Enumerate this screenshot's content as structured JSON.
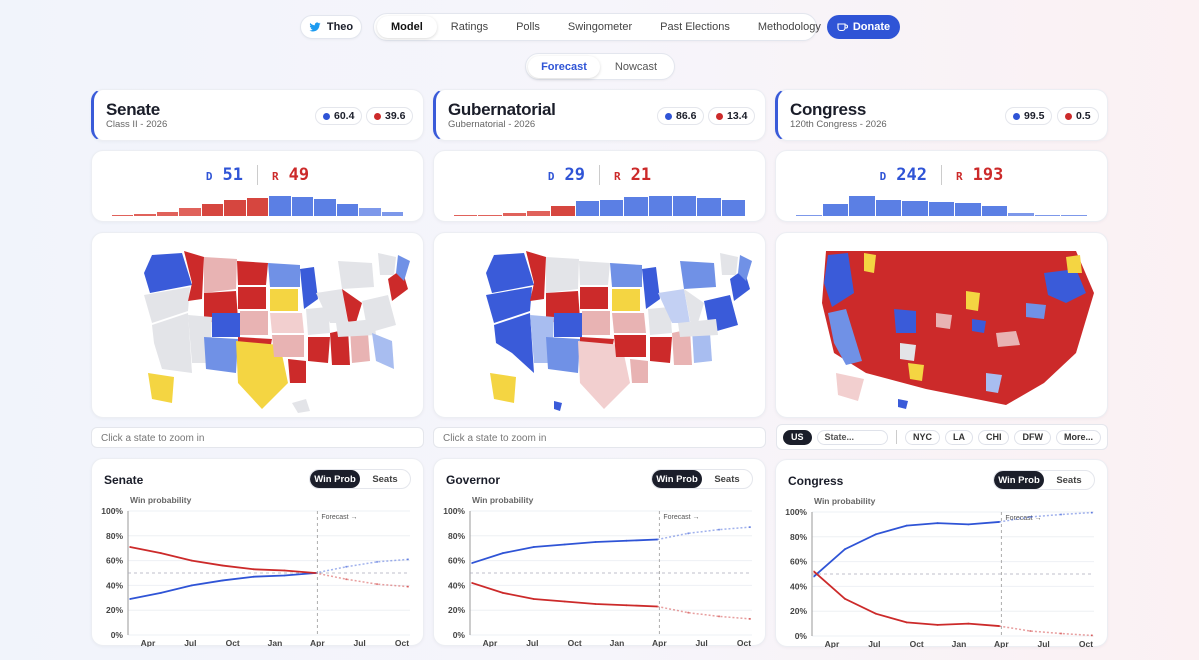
{
  "nav": {
    "theo_label": "Theo",
    "items": [
      "Model",
      "Ratings",
      "Polls",
      "Swingometer",
      "Past Elections",
      "Methodology"
    ],
    "active": "Model",
    "donate_label": "Donate"
  },
  "modes": {
    "items": [
      "Forecast",
      "Nowcast"
    ],
    "active": "Forecast"
  },
  "colors": {
    "dem": "#2f54d6",
    "rep": "#cc2a2a",
    "accent": "#2f54d6",
    "tossup": "#f4d542"
  },
  "races": [
    {
      "title": "Senate",
      "subtitle": "Class II - 2026",
      "dem_prob": "60.4",
      "rep_prob": "39.6",
      "seat_d_label": "D",
      "seat_d": "51",
      "seat_r_label": "R",
      "seat_r": "49",
      "histogram": [
        {
          "v": 0.02,
          "party": "R"
        },
        {
          "v": 0.06,
          "party": "R"
        },
        {
          "v": 0.14,
          "party": "R"
        },
        {
          "v": 0.3,
          "party": "R"
        },
        {
          "v": 0.48,
          "party": "R"
        },
        {
          "v": 0.62,
          "party": "R"
        },
        {
          "v": 0.7,
          "party": "R"
        },
        {
          "v": 0.78,
          "party": "D"
        },
        {
          "v": 0.74,
          "party": "D"
        },
        {
          "v": 0.64,
          "party": "D"
        },
        {
          "v": 0.48,
          "party": "D"
        },
        {
          "v": 0.3,
          "party": "D"
        },
        {
          "v": 0.16,
          "party": "D"
        }
      ],
      "zoom_hint": "Click a state to zoom in",
      "chart_title": "Senate",
      "toggle_on": "Win Prob",
      "toggle_off": "Seats"
    },
    {
      "title": "Gubernatorial",
      "subtitle": "Gubernatorial - 2026",
      "dem_prob": "86.6",
      "rep_prob": "13.4",
      "seat_d_label": "D",
      "seat_d": "29",
      "seat_r_label": "R",
      "seat_r": "21",
      "histogram": [
        {
          "v": 0.02,
          "party": "R"
        },
        {
          "v": 0.05,
          "party": "R"
        },
        {
          "v": 0.1,
          "party": "R"
        },
        {
          "v": 0.2,
          "party": "R"
        },
        {
          "v": 0.4,
          "party": "R"
        },
        {
          "v": 0.58,
          "party": "D"
        },
        {
          "v": 0.62,
          "party": "D"
        },
        {
          "v": 0.72,
          "party": "D"
        },
        {
          "v": 0.78,
          "party": "D"
        },
        {
          "v": 0.76,
          "party": "D"
        },
        {
          "v": 0.7,
          "party": "D"
        },
        {
          "v": 0.62,
          "party": "D"
        }
      ],
      "zoom_hint": "Click a state to zoom in",
      "chart_title": "Governor",
      "toggle_on": "Win Prob",
      "toggle_off": "Seats"
    },
    {
      "title": "Congress",
      "subtitle": "120th Congress - 2026",
      "dem_prob": "99.5",
      "rep_prob": "0.5",
      "seat_d_label": "D",
      "seat_d": "242",
      "seat_r_label": "R",
      "seat_r": "193",
      "histogram": [
        {
          "v": 0.02,
          "party": "D"
        },
        {
          "v": 0.46,
          "party": "D"
        },
        {
          "v": 0.78,
          "party": "D"
        },
        {
          "v": 0.62,
          "party": "D"
        },
        {
          "v": 0.58,
          "party": "D"
        },
        {
          "v": 0.55,
          "party": "D"
        },
        {
          "v": 0.5,
          "party": "D"
        },
        {
          "v": 0.4,
          "party": "D"
        },
        {
          "v": 0.1,
          "party": "D"
        },
        {
          "v": 0.05,
          "party": "D"
        },
        {
          "v": 0.02,
          "party": "D"
        }
      ],
      "zoom_hint": "",
      "chart_title": "Congress",
      "toggle_on": "Win Prob",
      "toggle_off": "Seats"
    }
  ],
  "congress_scope": {
    "active": "US",
    "state_placeholder": "State...",
    "metros": [
      "NYC",
      "LA",
      "CHI",
      "DFW"
    ],
    "more": "More..."
  },
  "chart_data": [
    {
      "type": "line",
      "title": "Senate",
      "ylabel": "Win probability",
      "x_ticks": [
        "Apr",
        "Jul",
        "Oct",
        "Jan",
        "Apr",
        "Jul",
        "Oct"
      ],
      "y_ticks": [
        "0%",
        "20%",
        "40%",
        "60%",
        "80%",
        "100%"
      ],
      "ylim": [
        0,
        100
      ],
      "annotation": "Forecast →",
      "forecast_start_index": 4,
      "series": [
        {
          "party": "D",
          "values": [
            29,
            34,
            40,
            44,
            47,
            48,
            50,
            55,
            59,
            61
          ],
          "projected_from": 6
        },
        {
          "party": "R",
          "values": [
            71,
            66,
            60,
            56,
            53,
            52,
            50,
            45,
            41,
            39
          ],
          "projected_from": 6
        }
      ]
    },
    {
      "type": "line",
      "title": "Governor",
      "ylabel": "Win probability",
      "x_ticks": [
        "Apr",
        "Jul",
        "Oct",
        "Jan",
        "Apr",
        "Jul",
        "Oct"
      ],
      "y_ticks": [
        "0%",
        "20%",
        "40%",
        "60%",
        "80%",
        "100%"
      ],
      "ylim": [
        0,
        100
      ],
      "annotation": "Forecast →",
      "forecast_start_index": 4,
      "series": [
        {
          "party": "D",
          "values": [
            58,
            66,
            71,
            73,
            75,
            76,
            77,
            82,
            85,
            87
          ],
          "projected_from": 6
        },
        {
          "party": "R",
          "values": [
            42,
            34,
            29,
            27,
            25,
            24,
            23,
            18,
            15,
            13
          ],
          "projected_from": 6
        }
      ]
    },
    {
      "type": "line",
      "title": "Congress",
      "ylabel": "Win probability",
      "x_ticks": [
        "Apr",
        "Jul",
        "Oct",
        "Jan",
        "Apr",
        "Jul",
        "Oct"
      ],
      "y_ticks": [
        "0%",
        "20%",
        "40%",
        "60%",
        "80%",
        "100%"
      ],
      "ylim": [
        0,
        100
      ],
      "annotation": "Forecast →",
      "forecast_start_index": 4,
      "series": [
        {
          "party": "D",
          "values": [
            48,
            70,
            82,
            89,
            91,
            90,
            92,
            96,
            98,
            99.5
          ],
          "projected_from": 6
        },
        {
          "party": "R",
          "values": [
            52,
            30,
            18,
            11,
            9,
            10,
            8,
            4,
            2,
            0.5
          ],
          "projected_from": 6
        }
      ]
    }
  ]
}
